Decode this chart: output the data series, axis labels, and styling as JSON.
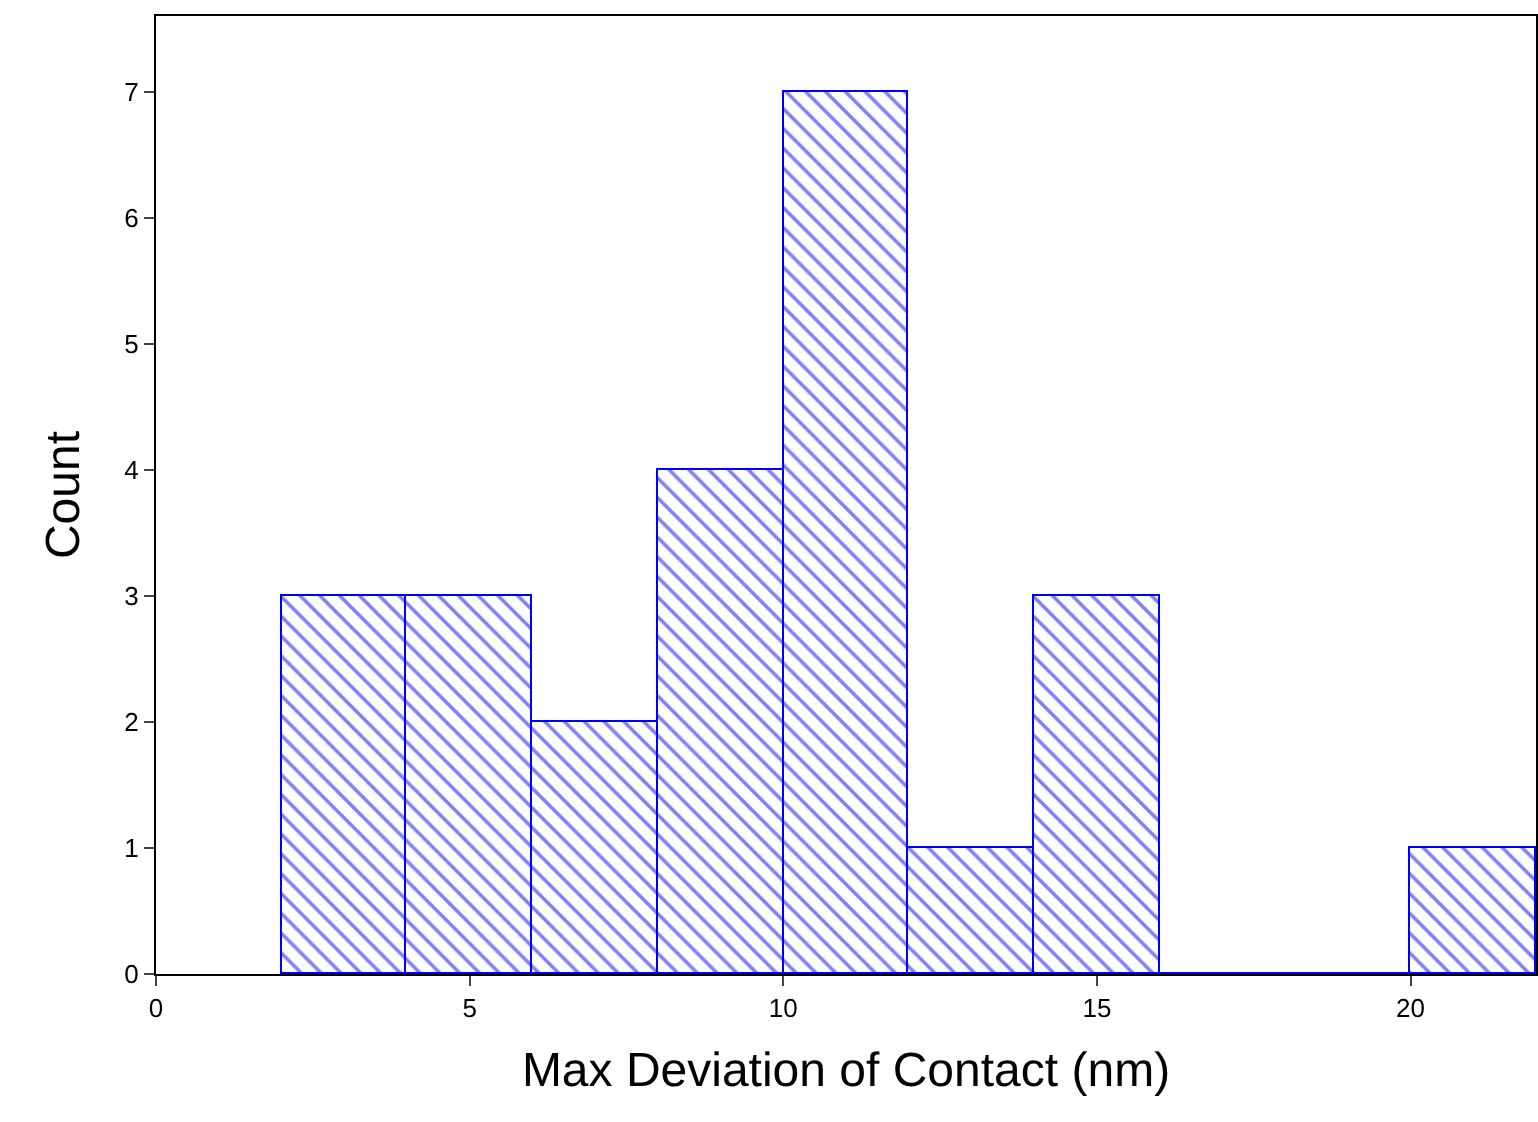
{
  "chart_data": {
    "type": "histogram",
    "xlabel": "Max Deviation of Contact (nm)",
    "ylabel": "Count",
    "bins": [
      2,
      4,
      6,
      8,
      10,
      12,
      14,
      16,
      18,
      20,
      22
    ],
    "values": [
      3,
      3,
      2,
      4,
      7,
      1,
      3,
      0,
      0,
      1
    ],
    "color": "#0000ff",
    "xlim": [
      0,
      22
    ],
    "xticks": [
      0,
      5,
      10,
      15,
      20
    ],
    "ylim": [
      0,
      7.6
    ],
    "yticks": [
      0,
      1,
      2,
      3,
      4,
      5,
      6,
      7
    ]
  }
}
